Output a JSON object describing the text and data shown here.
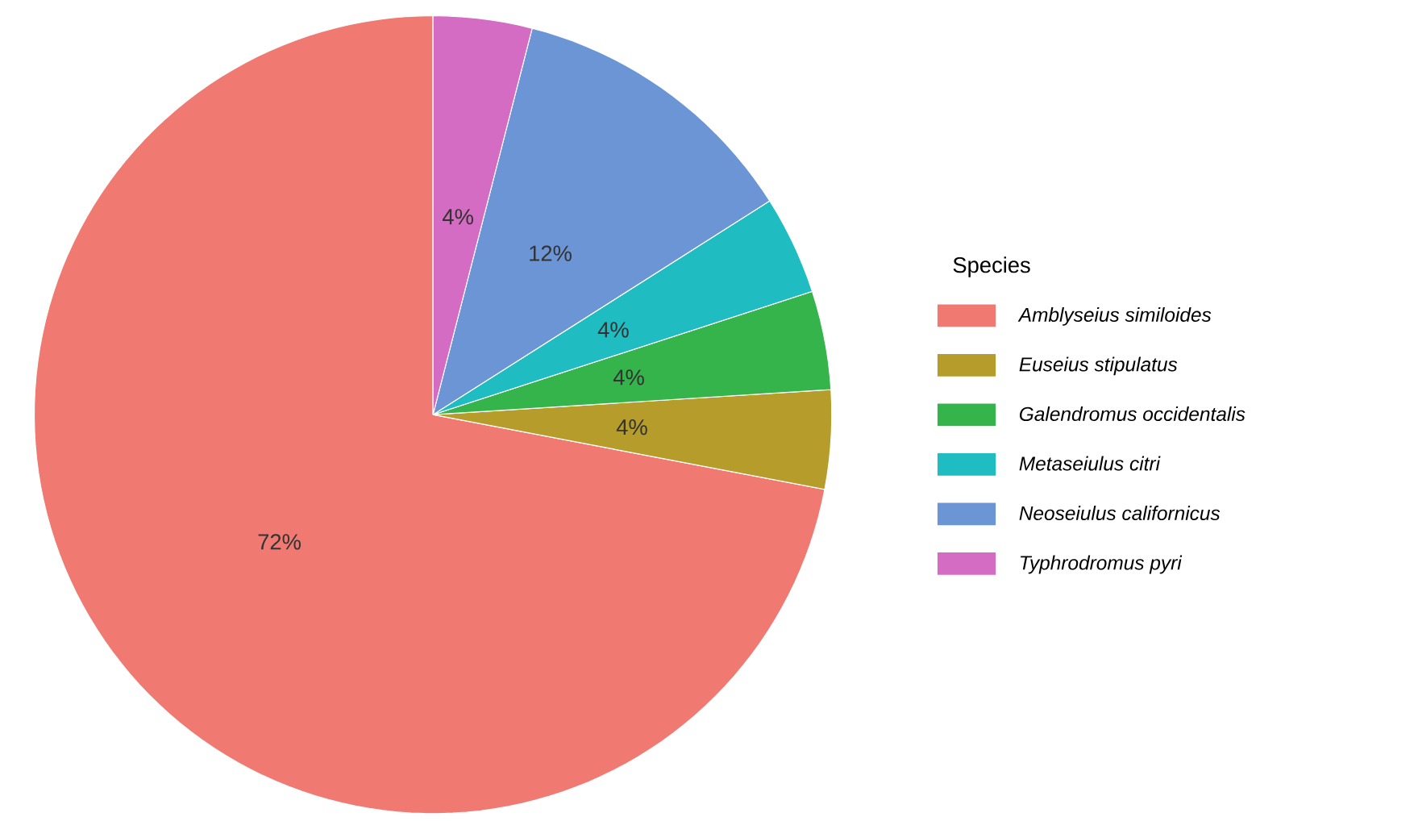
{
  "chart_data": {
    "type": "pie",
    "legend_title": "Species",
    "legend": "right",
    "categories": [
      "Amblyseius similoides",
      "Euseius stipulatus",
      "Galendromus occidentalis",
      "Metaseiulus citri",
      "Neoseiulus californicus",
      "Typhrodromus pyri"
    ],
    "values": [
      72,
      4,
      4,
      4,
      12,
      4
    ],
    "value_labels": [
      "72%",
      "4%",
      "4%",
      "4%",
      "12%",
      "4%"
    ],
    "colors": [
      "#f07a72",
      "#b69c2a",
      "#34b44a",
      "#1fbcc2",
      "#6c95d6",
      "#d46cc4"
    ]
  }
}
